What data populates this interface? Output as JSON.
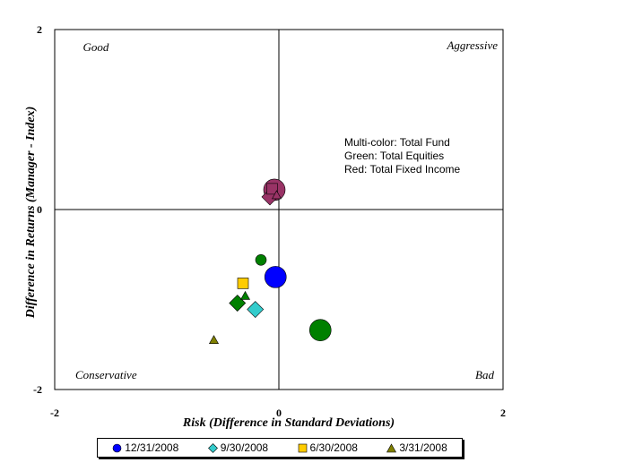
{
  "chart_data": {
    "type": "scatter",
    "title": "",
    "xlabel": "Risk (Difference in Standard Deviations)",
    "ylabel": "Difference in Returns (Manager - Index)",
    "xlim": [
      -2,
      2
    ],
    "ylim": [
      -2,
      2
    ],
    "x_ticks": [
      "-2",
      "0",
      "2"
    ],
    "y_ticks": [
      "2",
      "0",
      "-2"
    ],
    "grid": false,
    "legend_position": "bottom",
    "quadrant_labels": {
      "top_left": "Good",
      "top_right": "Aggressive",
      "bottom_left": "Conservative",
      "bottom_right": "Bad"
    },
    "annotation": [
      "Multi-color: Total Fund",
      "Green: Total Equities",
      "Red: Total Fixed Income"
    ],
    "series": [
      {
        "name": "12/31/2008",
        "marker": "circle",
        "points": [
          {
            "x": -0.03,
            "y": -0.75,
            "color": "#0000ff",
            "size": "large"
          },
          {
            "x": 0.37,
            "y": -1.34,
            "color": "#008000",
            "size": "large"
          },
          {
            "x": -0.04,
            "y": 0.22,
            "color": "#993366",
            "size": "large"
          },
          {
            "x": -0.16,
            "y": -0.56,
            "color": "#008000",
            "size": "small"
          }
        ]
      },
      {
        "name": "9/30/2008",
        "marker": "diamond",
        "points": [
          {
            "x": -0.21,
            "y": -1.11,
            "color": "#33cccc",
            "size": "medium"
          },
          {
            "x": -0.37,
            "y": -1.04,
            "color": "#008000",
            "size": "medium"
          },
          {
            "x": -0.08,
            "y": 0.14,
            "color": "#993366",
            "size": "medium"
          }
        ]
      },
      {
        "name": "6/30/2008",
        "marker": "square",
        "points": [
          {
            "x": -0.32,
            "y": -0.82,
            "color": "#ffcc00",
            "size": "medium"
          },
          {
            "x": -0.06,
            "y": 0.23,
            "color": "#993366",
            "size": "medium"
          }
        ]
      },
      {
        "name": "3/31/2008",
        "marker": "triangle",
        "points": [
          {
            "x": -0.3,
            "y": -0.96,
            "color": "#008000",
            "size": "small"
          },
          {
            "x": -0.58,
            "y": -1.45,
            "color": "#808000",
            "size": "small"
          },
          {
            "x": -0.02,
            "y": 0.16,
            "color": "#993366",
            "size": "small"
          }
        ]
      }
    ],
    "legend": [
      {
        "label": "12/31/2008",
        "marker": "circle",
        "color": "#0000ff"
      },
      {
        "label": "9/30/2008",
        "marker": "diamond",
        "color": "#33cccc"
      },
      {
        "label": "6/30/2008",
        "marker": "square",
        "color": "#ffcc00"
      },
      {
        "label": "3/31/2008",
        "marker": "triangle",
        "color": "#808000"
      }
    ]
  }
}
